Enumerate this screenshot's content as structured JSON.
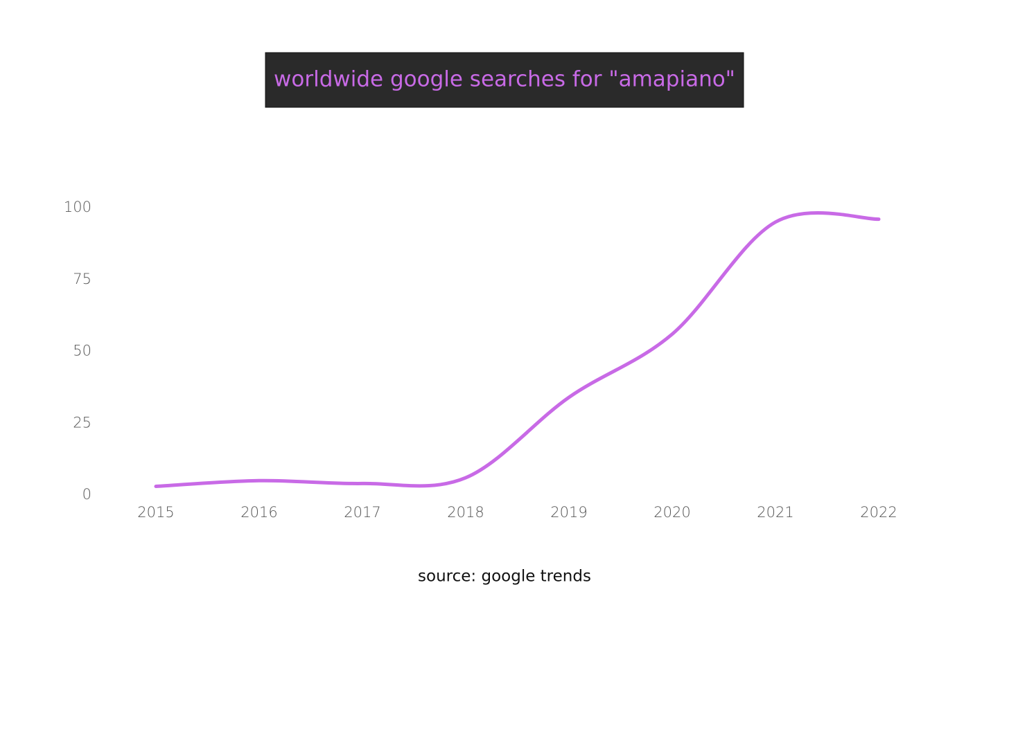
{
  "chart_data": {
    "type": "line",
    "title": "worldwide google searches for \"amapiano\"",
    "source": "source: google trends",
    "x": [
      2015,
      2016,
      2017,
      2018,
      2019,
      2020,
      2021,
      2022
    ],
    "series": [
      {
        "name": "amapiano",
        "color": "#c86ae6",
        "values": [
          3,
          5,
          4,
          6,
          34,
          56,
          95,
          96
        ]
      }
    ],
    "xlim": [
      2015,
      2022
    ],
    "xticks": [
      2015,
      2016,
      2017,
      2018,
      2019,
      2020,
      2021,
      2022
    ],
    "ylim": [
      0,
      100
    ],
    "yticks": [
      0,
      25,
      50,
      75,
      100
    ],
    "grid": false,
    "smooth": true
  }
}
